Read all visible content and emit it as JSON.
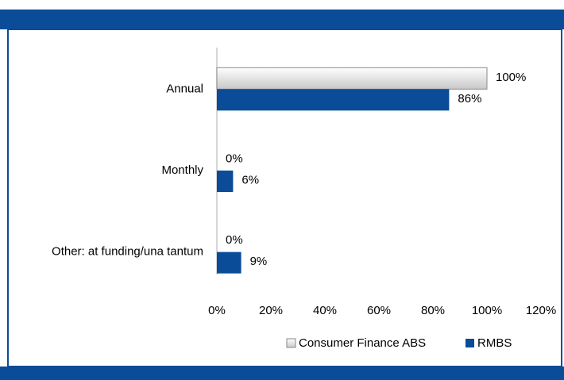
{
  "chart_data": {
    "type": "hbar",
    "categories": [
      "Annual",
      "Monthly",
      "Other: at funding/una tantum"
    ],
    "series": [
      {
        "name": "Consumer Finance ABS",
        "color": "#d9d9d9",
        "values": [
          100,
          0,
          0
        ],
        "value_labels": [
          "100%",
          "0%",
          "0%"
        ]
      },
      {
        "name": "RMBS",
        "color": "#0a4c97",
        "values": [
          86,
          6,
          9
        ],
        "value_labels": [
          "86%",
          "6%",
          "9%"
        ]
      }
    ],
    "xlim": [
      0,
      120
    ],
    "xticks": [
      {
        "value": 0,
        "label": "0%"
      },
      {
        "value": 20,
        "label": "20%"
      },
      {
        "value": 40,
        "label": "40%"
      },
      {
        "value": 60,
        "label": "60%"
      },
      {
        "value": 80,
        "label": "80%"
      },
      {
        "value": 100,
        "label": "100%"
      },
      {
        "value": 120,
        "label": "120%"
      }
    ],
    "legend": "bottom"
  }
}
